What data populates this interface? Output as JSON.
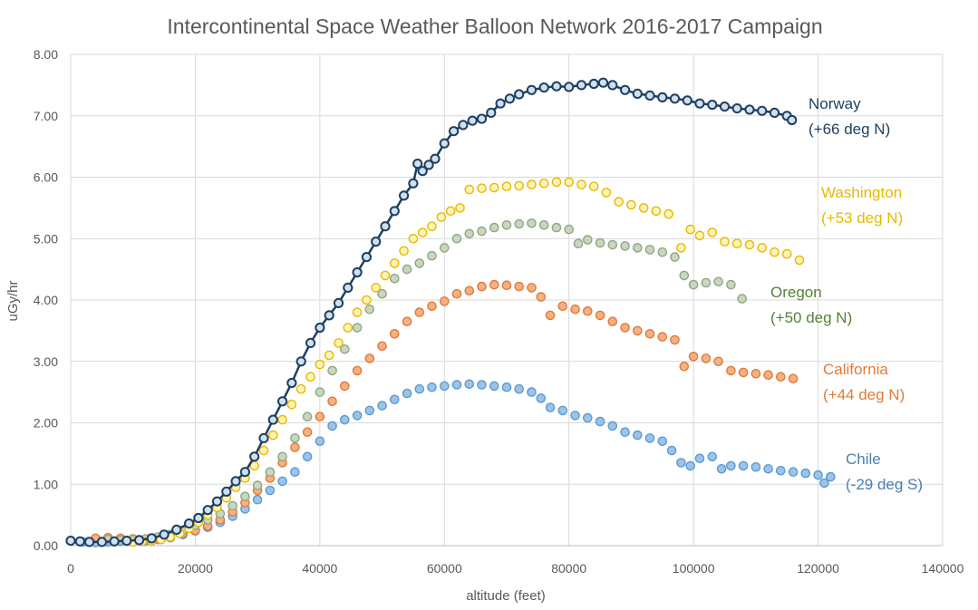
{
  "chart_data": {
    "type": "scatter",
    "title": "Intercontinental Space Weather Balloon Network  2016-2017 Campaign",
    "xlabel": "altitude (feet)",
    "ylabel": "uGy/hr",
    "xlim": [
      0,
      140000
    ],
    "ylim": [
      0,
      8
    ],
    "xticks": [
      "0",
      "20000",
      "40000",
      "60000",
      "80000",
      "100000",
      "120000",
      "140000"
    ],
    "yticks": [
      "0.00",
      "1.00",
      "2.00",
      "3.00",
      "4.00",
      "5.00",
      "6.00",
      "7.00",
      "8.00"
    ],
    "grid": true,
    "legend": "inline labels to the right of each series",
    "series": [
      {
        "name": "Norway",
        "sublabel": "(+66 deg N)",
        "color": "#1f3f60",
        "fill": "#cfe0f1",
        "label_color": "#1f3f60",
        "line": true,
        "x": [
          0,
          1500,
          3000,
          5000,
          7000,
          9000,
          11000,
          13000,
          15000,
          17000,
          19000,
          20500,
          22000,
          23500,
          25000,
          26500,
          28000,
          29500,
          31000,
          32500,
          34000,
          35500,
          37000,
          38500,
          40000,
          41500,
          43000,
          44500,
          46000,
          47500,
          49000,
          50500,
          52000,
          53500,
          55000,
          55700,
          56500,
          57500,
          58500,
          60000,
          61500,
          63000,
          64500,
          66000,
          67500,
          69000,
          70500,
          72000,
          74000,
          76000,
          78000,
          80000,
          82000,
          84000,
          85500,
          87000,
          89000,
          91000,
          93000,
          95000,
          97000,
          99000,
          101000,
          103000,
          105000,
          107000,
          109000,
          111000,
          113000,
          115000,
          115800
        ],
        "y": [
          0.08,
          0.07,
          0.06,
          0.06,
          0.07,
          0.08,
          0.09,
          0.12,
          0.18,
          0.26,
          0.36,
          0.45,
          0.58,
          0.72,
          0.88,
          1.05,
          1.2,
          1.45,
          1.75,
          2.05,
          2.35,
          2.65,
          3.0,
          3.3,
          3.55,
          3.75,
          3.95,
          4.2,
          4.45,
          4.7,
          4.95,
          5.2,
          5.45,
          5.7,
          5.9,
          6.22,
          6.1,
          6.2,
          6.3,
          6.55,
          6.75,
          6.85,
          6.92,
          6.95,
          7.05,
          7.2,
          7.28,
          7.35,
          7.42,
          7.46,
          7.48,
          7.47,
          7.5,
          7.52,
          7.54,
          7.5,
          7.42,
          7.36,
          7.33,
          7.3,
          7.28,
          7.25,
          7.2,
          7.18,
          7.15,
          7.12,
          7.1,
          7.08,
          7.05,
          7.0,
          6.93
        ]
      },
      {
        "name": "Washington",
        "sublabel": "(+53 deg N)",
        "color": "#e8b800",
        "fill": "#fff3b8",
        "label_color": "#e8b800",
        "line": false,
        "x": [
          10000,
          11500,
          13000,
          14500,
          16000,
          17500,
          19000,
          20500,
          22000,
          23500,
          25000,
          26500,
          28000,
          29500,
          31000,
          32500,
          34000,
          35500,
          37000,
          38500,
          40000,
          41500,
          43000,
          44500,
          46000,
          47500,
          49000,
          50500,
          52000,
          53500,
          55000,
          56500,
          58000,
          59500,
          61000,
          62500,
          64000,
          66000,
          68000,
          70000,
          72000,
          74000,
          76000,
          78000,
          80000,
          82000,
          84000,
          86000,
          88000,
          90000,
          92000,
          94000,
          96000,
          98000,
          99500,
          101000,
          103000,
          105000,
          107000,
          109000,
          111000,
          113000,
          115000,
          117000
        ],
        "y": [
          0.06,
          0.07,
          0.08,
          0.1,
          0.14,
          0.2,
          0.28,
          0.38,
          0.5,
          0.62,
          0.78,
          0.95,
          1.1,
          1.3,
          1.55,
          1.8,
          2.05,
          2.3,
          2.55,
          2.75,
          2.95,
          3.1,
          3.3,
          3.55,
          3.8,
          4.0,
          4.2,
          4.4,
          4.6,
          4.8,
          5.0,
          5.1,
          5.2,
          5.35,
          5.45,
          5.5,
          5.8,
          5.82,
          5.83,
          5.85,
          5.86,
          5.88,
          5.9,
          5.92,
          5.92,
          5.88,
          5.85,
          5.75,
          5.6,
          5.55,
          5.5,
          5.45,
          5.4,
          4.85,
          5.15,
          5.05,
          5.1,
          4.95,
          4.92,
          4.9,
          4.85,
          4.78,
          4.75,
          4.65
        ]
      },
      {
        "name": "Oregon",
        "sublabel": "(+50 deg N)",
        "color": "#8fa882",
        "fill": "#c9d6c0",
        "label_color": "#548235",
        "line": false,
        "x": [
          6000,
          8000,
          10000,
          12000,
          14000,
          16000,
          18000,
          20000,
          22000,
          24000,
          26000,
          28000,
          30000,
          32000,
          34000,
          36000,
          38000,
          40000,
          42000,
          44000,
          46000,
          48000,
          50000,
          52000,
          54000,
          56000,
          58000,
          60000,
          62000,
          64000,
          66000,
          68000,
          70000,
          72000,
          74000,
          76000,
          78000,
          80000,
          81500,
          83000,
          85000,
          87000,
          89000,
          91000,
          93000,
          95000,
          97000,
          98500,
          100000,
          102000,
          104000,
          106000,
          107800
        ],
        "y": [
          0.1,
          0.09,
          0.1,
          0.11,
          0.14,
          0.18,
          0.25,
          0.33,
          0.42,
          0.52,
          0.65,
          0.8,
          0.98,
          1.2,
          1.45,
          1.75,
          2.1,
          2.5,
          2.85,
          3.2,
          3.55,
          3.85,
          4.1,
          4.35,
          4.5,
          4.6,
          4.72,
          4.85,
          5.0,
          5.08,
          5.12,
          5.18,
          5.22,
          5.24,
          5.25,
          5.22,
          5.18,
          5.15,
          4.92,
          4.98,
          4.93,
          4.9,
          4.88,
          4.85,
          4.82,
          4.78,
          4.7,
          4.4,
          4.25,
          4.28,
          4.3,
          4.25,
          4.02
        ]
      },
      {
        "name": "California",
        "sublabel": "(+44 deg N)",
        "color": "#e07b39",
        "fill": "#f4b183",
        "label_color": "#e07b39",
        "line": false,
        "x": [
          4000,
          6000,
          8000,
          10000,
          12000,
          14000,
          16000,
          18000,
          20000,
          22000,
          24000,
          26000,
          28000,
          30000,
          32000,
          34000,
          36000,
          38000,
          40000,
          42000,
          44000,
          46000,
          48000,
          50000,
          52000,
          54000,
          56000,
          58000,
          60000,
          62000,
          64000,
          66000,
          68000,
          70000,
          72000,
          74000,
          75500,
          77000,
          79000,
          81000,
          83000,
          85000,
          87000,
          89000,
          91000,
          93000,
          95000,
          97000,
          98500,
          100000,
          102000,
          104000,
          106000,
          108000,
          110000,
          112000,
          114000,
          116000
        ],
        "y": [
          0.12,
          0.13,
          0.12,
          0.11,
          0.1,
          0.12,
          0.15,
          0.2,
          0.25,
          0.32,
          0.42,
          0.55,
          0.7,
          0.9,
          1.1,
          1.35,
          1.6,
          1.85,
          2.1,
          2.35,
          2.6,
          2.85,
          3.05,
          3.25,
          3.45,
          3.65,
          3.8,
          3.9,
          3.98,
          4.1,
          4.15,
          4.22,
          4.25,
          4.24,
          4.22,
          4.2,
          4.05,
          3.75,
          3.9,
          3.85,
          3.82,
          3.75,
          3.65,
          3.55,
          3.5,
          3.45,
          3.4,
          3.35,
          2.92,
          3.08,
          3.05,
          3.0,
          2.85,
          2.82,
          2.8,
          2.78,
          2.75,
          2.72
        ]
      },
      {
        "name": "Chile",
        "sublabel": "(-29  deg S)",
        "color": "#5b9bd5",
        "fill": "#9dc3e6",
        "label_color": "#4a7fb0",
        "line": false,
        "x": [
          2000,
          4000,
          6000,
          8000,
          10000,
          12000,
          14000,
          16000,
          18000,
          20000,
          22000,
          24000,
          26000,
          28000,
          30000,
          32000,
          34000,
          36000,
          38000,
          40000,
          42000,
          44000,
          46000,
          48000,
          50000,
          52000,
          54000,
          56000,
          58000,
          60000,
          62000,
          64000,
          66000,
          68000,
          70000,
          72000,
          74000,
          75500,
          77000,
          79000,
          81000,
          83000,
          85000,
          87000,
          89000,
          91000,
          93000,
          95000,
          96500,
          98000,
          99500,
          101000,
          103000,
          104500,
          106000,
          108000,
          110000,
          112000,
          114000,
          116000,
          118000,
          120000,
          121000,
          122000
        ],
        "y": [
          0.06,
          0.05,
          0.06,
          0.07,
          0.07,
          0.08,
          0.1,
          0.13,
          0.18,
          0.24,
          0.3,
          0.38,
          0.48,
          0.6,
          0.75,
          0.9,
          1.05,
          1.2,
          1.45,
          1.7,
          1.95,
          2.05,
          2.12,
          2.2,
          2.28,
          2.38,
          2.48,
          2.55,
          2.58,
          2.6,
          2.62,
          2.63,
          2.62,
          2.6,
          2.58,
          2.55,
          2.5,
          2.4,
          2.25,
          2.2,
          2.12,
          2.08,
          2.02,
          1.95,
          1.85,
          1.8,
          1.75,
          1.7,
          1.55,
          1.35,
          1.3,
          1.42,
          1.45,
          1.25,
          1.3,
          1.3,
          1.28,
          1.25,
          1.22,
          1.2,
          1.18,
          1.15,
          1.02,
          1.12
        ]
      }
    ]
  }
}
